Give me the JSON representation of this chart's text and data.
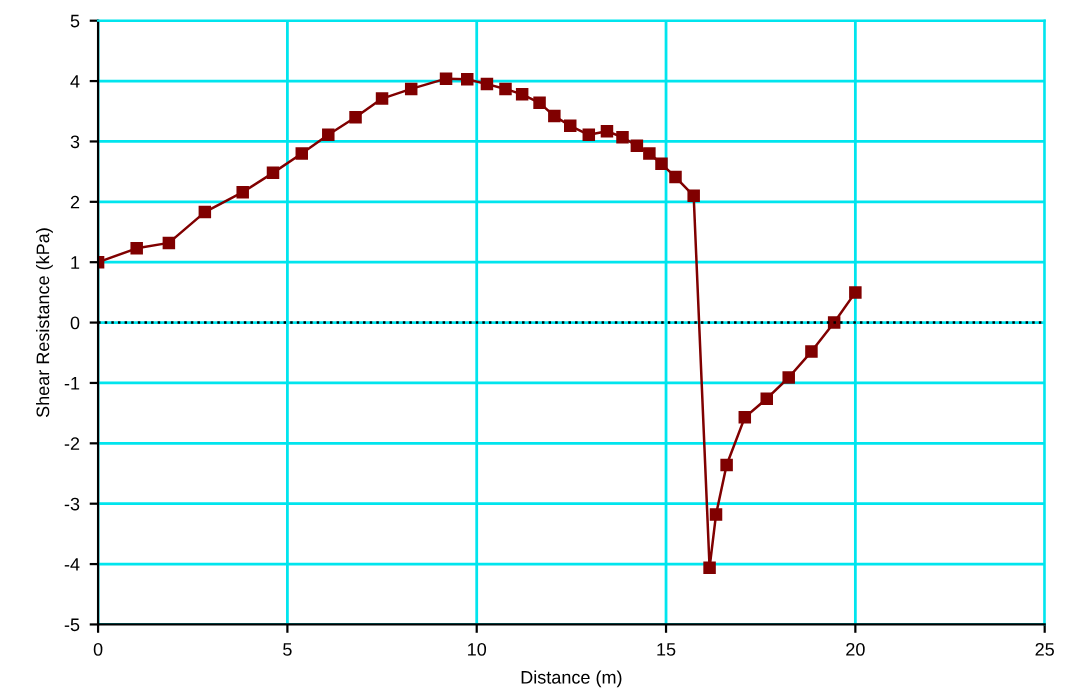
{
  "chart_data": {
    "type": "line",
    "xlabel": "Distance (m)",
    "ylabel": "Shear Resistance (kPa)",
    "x": [
      0,
      1.02,
      1.87,
      2.82,
      3.82,
      4.62,
      5.38,
      6.08,
      6.8,
      7.5,
      8.27,
      9.19,
      9.75,
      10.27,
      10.76,
      11.2,
      11.66,
      12.05,
      12.47,
      12.96,
      13.44,
      13.85,
      14.23,
      14.56,
      14.88,
      15.25,
      15.73,
      16.15,
      16.32,
      16.6,
      17.08,
      17.66,
      18.24,
      18.84,
      19.44,
      20.0
    ],
    "series": [
      {
        "color": "#800000",
        "values": [
          1.0,
          1.23,
          1.32,
          1.83,
          2.16,
          2.48,
          2.8,
          3.11,
          3.4,
          3.71,
          3.87,
          4.04,
          4.03,
          3.95,
          3.87,
          3.78,
          3.64,
          3.42,
          3.26,
          3.11,
          3.17,
          3.07,
          2.93,
          2.8,
          2.63,
          2.41,
          2.1,
          -4.06,
          -3.18,
          -2.36,
          -1.57,
          -1.26,
          -0.91,
          -0.48,
          0.0,
          0.5
        ]
      }
    ],
    "xlim": [
      0,
      25
    ],
    "xticks": [
      0,
      5,
      10,
      15,
      20,
      25
    ],
    "ylim": [
      -5,
      5
    ],
    "yticks": [
      -5,
      -4,
      -3,
      -2,
      -1,
      0,
      1,
      2,
      3,
      4,
      5
    ],
    "grid": true,
    "marker": "square",
    "line_style": "solid",
    "ref_lines": [
      {
        "axis": "y",
        "value": 0,
        "color": "#000000",
        "line_style": "dotted"
      }
    ]
  }
}
